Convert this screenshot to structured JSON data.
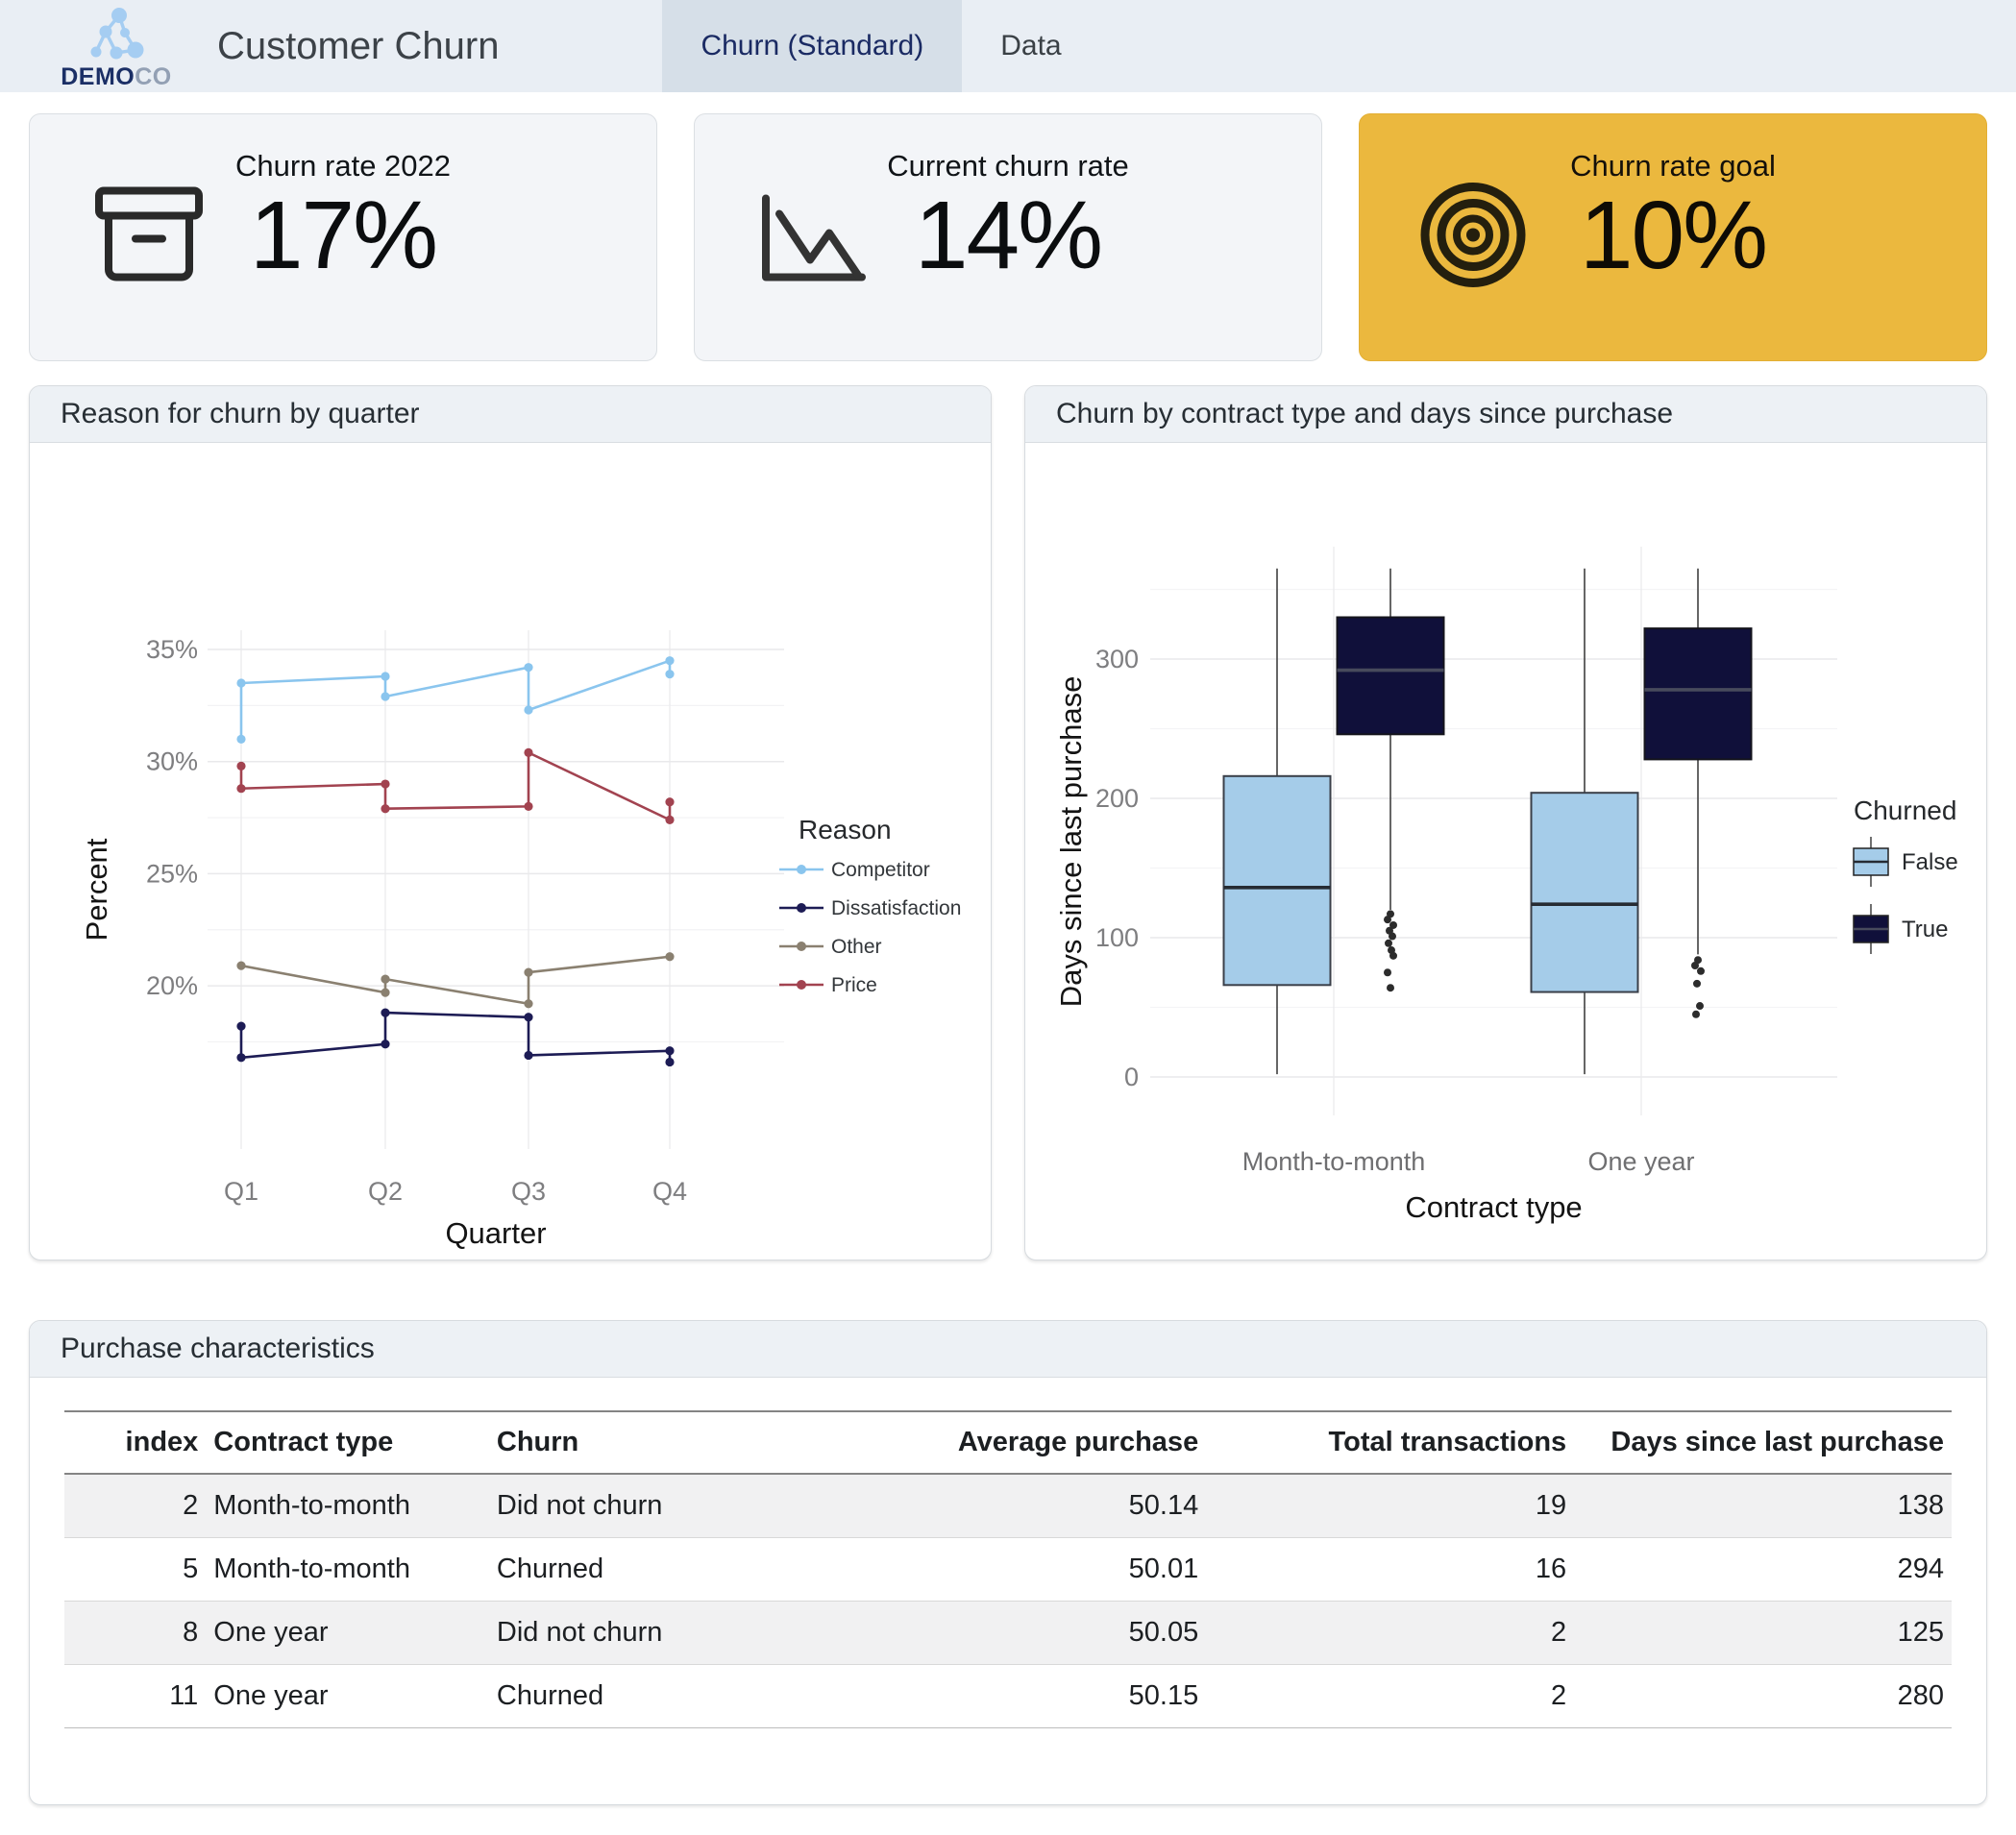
{
  "header": {
    "logo_bold": "DEMO",
    "logo_light": "CO",
    "title": "Customer Churn",
    "tabs": [
      {
        "label": "Churn (Standard)",
        "active": true
      },
      {
        "label": "Data",
        "active": false
      }
    ]
  },
  "kpis": [
    {
      "title": "Churn rate 2022",
      "value": "17%",
      "icon": "archive-box-icon"
    },
    {
      "title": "Current churn rate",
      "value": "14%",
      "icon": "trend-down-chart-icon"
    },
    {
      "title": "Churn rate goal",
      "value": "10%",
      "icon": "target-icon",
      "highlight": true,
      "highlight_color": "#ebb83e"
    }
  ],
  "panels": {
    "line_chart_title": "Reason for churn by quarter",
    "box_chart_title": "Churn by contract type and days since purchase",
    "table_title": "Purchase characteristics"
  },
  "chart_data": [
    {
      "type": "line",
      "title": "Reason for churn by quarter",
      "xlabel": "Quarter",
      "ylabel": "Percent",
      "x_categories": [
        "Q1",
        "Q2",
        "Q3",
        "Q4"
      ],
      "y_tick_values": [
        20,
        25,
        30,
        35
      ],
      "y_tick_labels": [
        "20%",
        "25%",
        "30%",
        "35%"
      ],
      "y_minor_values": [
        17.5,
        22.5,
        27.5,
        32.5
      ],
      "ylim": [
        16,
        36
      ],
      "legend_title": "Reason",
      "grid": true,
      "legend_position": "right",
      "series": [
        {
          "name": "Competitor",
          "color": "#8ac5ee",
          "points": [
            [
              1,
              31.0
            ],
            [
              1,
              33.5
            ],
            [
              2,
              33.8
            ],
            [
              2,
              32.9
            ],
            [
              3,
              34.2
            ],
            [
              3,
              32.3
            ],
            [
              4,
              34.5
            ],
            [
              4,
              33.9
            ]
          ]
        },
        {
          "name": "Dissatisfaction",
          "color": "#1d1c55",
          "points": [
            [
              1,
              18.2
            ],
            [
              1,
              16.8
            ],
            [
              2,
              17.4
            ],
            [
              2,
              18.8
            ],
            [
              3,
              18.6
            ],
            [
              3,
              16.9
            ],
            [
              4,
              17.1
            ],
            [
              4,
              16.6
            ]
          ]
        },
        {
          "name": "Other",
          "color": "#8a8070",
          "points": [
            [
              1,
              20.9
            ],
            [
              2,
              19.7
            ],
            [
              2,
              20.3
            ],
            [
              3,
              19.2
            ],
            [
              3,
              20.6
            ],
            [
              4,
              21.3
            ]
          ]
        },
        {
          "name": "Price",
          "color": "#a24350",
          "points": [
            [
              1,
              29.8
            ],
            [
              1,
              28.8
            ],
            [
              2,
              29.0
            ],
            [
              2,
              27.9
            ],
            [
              3,
              28.0
            ],
            [
              3,
              30.4
            ],
            [
              4,
              27.4
            ],
            [
              4,
              28.2
            ]
          ]
        }
      ]
    },
    {
      "type": "boxplot",
      "title": "Churn by contract type and days since purchase",
      "xlabel": "Contract type",
      "ylabel": "Days since last purchase",
      "categories": [
        "Month-to-month",
        "One year"
      ],
      "y_tick_values": [
        0,
        100,
        200,
        300
      ],
      "y_minor_values": [
        50,
        150,
        250,
        350
      ],
      "ylim": [
        0,
        380
      ],
      "legend_title": "Churned",
      "groups": [
        {
          "name": "False",
          "color": "#a5cce9",
          "boxes": [
            {
              "category": "Month-to-month",
              "low": 2,
              "q1": 66,
              "median": 136,
              "q3": 216,
              "high": 365,
              "outliers": []
            },
            {
              "category": "One year",
              "low": 2,
              "q1": 61,
              "median": 124,
              "q3": 204,
              "high": 365,
              "outliers": []
            }
          ]
        },
        {
          "name": "True",
          "color": "#10103a",
          "boxes": [
            {
              "category": "Month-to-month",
              "low": 120,
              "q1": 246,
              "median": 292,
              "q3": 330,
              "high": 365,
              "outliers": [
                117,
                113,
                109,
                105,
                101,
                96,
                91,
                87,
                75,
                64
              ]
            },
            {
              "category": "One year",
              "low": 88,
              "q1": 228,
              "median": 278,
              "q3": 322,
              "high": 365,
              "outliers": [
                84,
                80,
                76,
                67,
                51,
                45
              ]
            }
          ]
        }
      ]
    }
  ],
  "table": {
    "title": "Purchase characteristics",
    "columns": [
      {
        "label": "index",
        "align": "right",
        "width": "7.5%"
      },
      {
        "label": "Contract type",
        "align": "left",
        "width": "15%"
      },
      {
        "label": "Churn",
        "align": "left",
        "width": "17%"
      },
      {
        "label": "Average purchase",
        "align": "right",
        "width": "21%"
      },
      {
        "label": "Total transactions",
        "align": "right",
        "width": "19.5%"
      },
      {
        "label": "Days since last purchase",
        "align": "right",
        "width": "20%"
      }
    ],
    "rows": [
      [
        "2",
        "Month-to-month",
        "Did not churn",
        "50.14",
        "19",
        "138"
      ],
      [
        "5",
        "Month-to-month",
        "Churned",
        "50.01",
        "16",
        "294"
      ],
      [
        "8",
        "One year",
        "Did not churn",
        "50.05",
        "2",
        "125"
      ],
      [
        "11",
        "One year",
        "Churned",
        "50.15",
        "2",
        "280"
      ]
    ]
  }
}
